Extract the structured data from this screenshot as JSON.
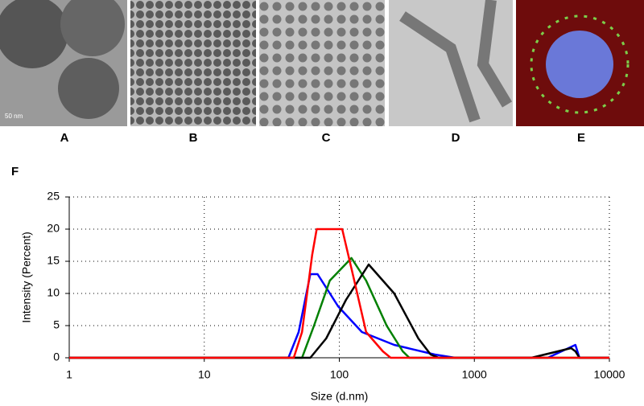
{
  "panels": [
    "A",
    "B",
    "C",
    "D",
    "E"
  ],
  "scale_bar": "50 nm",
  "chart_label": "F",
  "chart_data": {
    "type": "line",
    "x_label": "Size (d.nm)",
    "y_label": "Intensity (Percent)",
    "log_x": true,
    "grid": true,
    "xlim": [
      1,
      10000
    ],
    "xticks": [
      1,
      10,
      100,
      1000,
      10000
    ],
    "ylim": [
      0,
      25
    ],
    "yticks": [
      0,
      5,
      10,
      15,
      20,
      25
    ],
    "series": [
      {
        "color": "#0000ff",
        "x": [
          1,
          42,
          50,
          61,
          69,
          98,
          147,
          255,
          510,
          720,
          3500,
          5600,
          6000,
          10000
        ],
        "values": [
          0,
          0,
          4,
          13,
          13,
          8,
          4,
          2,
          0.5,
          0,
          0,
          2,
          0,
          0
        ]
      },
      {
        "color": "#008000",
        "x": [
          1,
          53,
          65,
          85,
          123,
          158,
          224,
          295,
          330,
          10000
        ],
        "values": [
          0,
          0,
          5,
          12,
          15.5,
          12,
          5,
          1,
          0,
          0
        ]
      },
      {
        "color": "#000000",
        "x": [
          1,
          61,
          80,
          112,
          165,
          255,
          385,
          475,
          545,
          2650,
          5200,
          5600,
          6000,
          10000
        ],
        "values": [
          0,
          0,
          3,
          9,
          14.5,
          10,
          3,
          0.5,
          0,
          0,
          1.5,
          1,
          0,
          0
        ]
      },
      {
        "color": "#ff0000",
        "x": [
          1,
          46,
          53,
          63,
          68,
          105,
          129,
          158,
          210,
          240,
          10000
        ],
        "values": [
          0,
          0,
          4,
          16,
          20,
          20,
          12,
          4,
          1,
          0,
          0
        ]
      }
    ]
  }
}
